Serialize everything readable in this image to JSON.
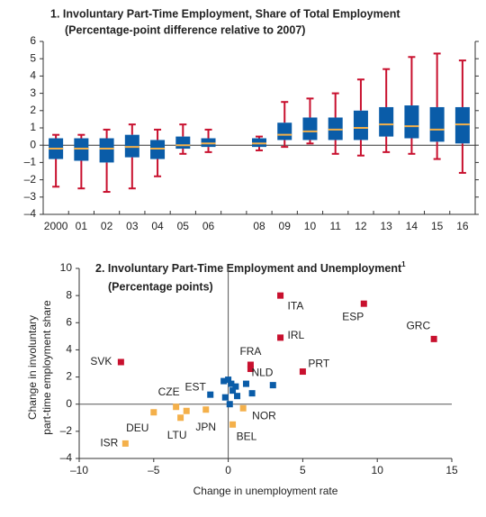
{
  "chart_data": [
    {
      "type": "box",
      "title": "1. Involuntary Part-Time Employment, Share of Total Employment",
      "subtitle": "(Percentage-point difference relative to 2007)",
      "categories": [
        "2000",
        "01",
        "02",
        "03",
        "04",
        "05",
        "06",
        null,
        "08",
        "09",
        "10",
        "11",
        "12",
        "13",
        "14",
        "15",
        "16"
      ],
      "boxes": {
        "high": [
          0.6,
          0.6,
          0.9,
          1.2,
          0.9,
          1.2,
          0.9,
          null,
          0.5,
          2.5,
          2.7,
          3.0,
          3.8,
          4.4,
          5.1,
          5.3,
          4.9
        ],
        "q3": [
          0.4,
          0.4,
          0.4,
          0.6,
          0.3,
          0.5,
          0.4,
          null,
          0.4,
          1.3,
          1.6,
          1.6,
          2.0,
          2.2,
          2.3,
          2.2,
          2.2
        ],
        "median": [
          -0.2,
          -0.2,
          -0.2,
          -0.1,
          -0.2,
          0.0,
          0.1,
          null,
          0.1,
          0.6,
          0.8,
          0.9,
          1.0,
          1.2,
          1.1,
          0.9,
          1.2
        ],
        "q1": [
          -0.8,
          -0.9,
          -1.0,
          -0.7,
          -0.8,
          -0.2,
          -0.1,
          null,
          -0.1,
          0.3,
          0.3,
          0.3,
          0.3,
          0.5,
          0.4,
          0.2,
          0.1
        ],
        "low": [
          -2.4,
          -2.5,
          -2.7,
          -2.5,
          -1.8,
          -0.5,
          -0.4,
          null,
          -0.3,
          -0.1,
          0.1,
          -0.5,
          -0.6,
          -0.4,
          -0.5,
          -0.8,
          -1.6
        ]
      },
      "box_color": "#0a5ca8",
      "whisker_color": "#c8102e",
      "median_color": "#f4b04a",
      "ylim": [
        -4,
        6
      ],
      "yticks": [
        {
          "value": -4,
          "label": "–4"
        },
        {
          "value": -3,
          "label": "–3"
        },
        {
          "value": -2,
          "label": "–2"
        },
        {
          "value": -1,
          "label": "–1"
        },
        0,
        1,
        2,
        3,
        4,
        5,
        6
      ]
    },
    {
      "type": "scatter",
      "title": "2. Involuntary Part-Time Employment and Unemployment",
      "title_note": "1",
      "subtitle": "(Percentage points)",
      "xlabel": "Change in unemployment rate",
      "ylabel": [
        "Change in involuntary",
        "part-time employment share"
      ],
      "series": [
        {
          "color": "#c8102e",
          "x": [
            -7.2,
            3.5,
            9.1,
            3.5,
            13.8,
            5.0,
            1.5,
            1.5
          ],
          "y": [
            3.1,
            8.0,
            7.4,
            4.9,
            4.8,
            2.4,
            2.9,
            2.6
          ],
          "labels": [
            "SVK",
            "ITA",
            "ESP",
            "IRL",
            "GRC",
            "PRT",
            "FRA",
            null
          ]
        },
        {
          "color": "#0a5ca8",
          "x": [
            -1.2,
            -0.3,
            0.0,
            0.2,
            0.5,
            0.6,
            -0.2,
            1.2,
            1.6,
            3.0,
            0.1,
            0.3
          ],
          "y": [
            0.7,
            1.7,
            1.8,
            1.5,
            1.3,
            0.6,
            0.5,
            1.5,
            0.8,
            1.4,
            0.0,
            1.0
          ],
          "labels": [
            null,
            null,
            null,
            null,
            null,
            null,
            null,
            "NLD",
            null,
            null,
            null,
            null
          ]
        },
        {
          "color": "#f4b04a",
          "x": [
            -6.9,
            -5.0,
            -3.2,
            -3.5,
            -2.8,
            -1.5,
            0.3,
            1.0
          ],
          "y": [
            -2.9,
            -0.6,
            -1.0,
            -0.2,
            -0.5,
            -0.4,
            -1.5,
            -0.3
          ],
          "labels": [
            "ISR",
            "DEU",
            "LTU",
            "CZE",
            "EST",
            "JPN",
            "BEL",
            "NOR"
          ]
        }
      ],
      "xlim": [
        -10,
        15
      ],
      "xticks": [
        {
          "value": -10,
          "label": "–10"
        },
        {
          "value": -5,
          "label": "–5"
        },
        0,
        5,
        10,
        15
      ],
      "ylim": [
        -4,
        10
      ],
      "yticks": [
        {
          "value": -4,
          "label": "–4"
        },
        {
          "value": -2,
          "label": "–2"
        },
        0,
        2,
        4,
        6,
        8,
        10
      ]
    }
  ]
}
